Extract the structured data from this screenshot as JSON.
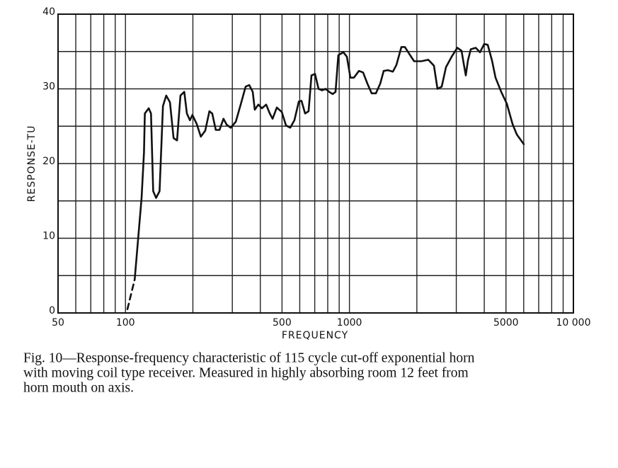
{
  "chart_data": {
    "type": "line",
    "xlabel": "FREQUENCY",
    "ylabel": "RESPONSE-TU",
    "caption": [
      "Fig. 10—Response-frequency characteristic of 115 cycle cut-off exponential horn",
      "with moving coil type receiver.  Measured in highly absorbing room 12 feet from",
      "horn mouth on axis."
    ],
    "xscale": "log",
    "xlim": [
      50,
      10000
    ],
    "ylim": [
      0,
      40
    ],
    "xticks": [
      50,
      100,
      500,
      1000,
      5000,
      {
        "value": 10000,
        "label": "10 000"
      }
    ],
    "xminor": [
      60,
      70,
      80,
      90,
      200,
      300,
      400,
      600,
      700,
      800,
      900,
      2000,
      3000,
      4000,
      6000,
      7000,
      8000,
      9000
    ],
    "yticks": [
      0,
      10,
      20,
      30,
      40
    ],
    "yminor": [
      5,
      15,
      25,
      35
    ],
    "grid": true,
    "series": [
      {
        "color": "#111111",
        "dashed": true,
        "x": [
          102,
          110
        ],
        "values": [
          0.5,
          4.5
        ]
      },
      {
        "color": "#111111",
        "dashed": false,
        "x": [
          110,
          118,
          121,
          122,
          127,
          130,
          133,
          137,
          142,
          147,
          152,
          158,
          164,
          170,
          176,
          183,
          188,
          194,
          199,
          208,
          217,
          227,
          237,
          244,
          253,
          263,
          274,
          283,
          295,
          311,
          327,
          344,
          357,
          370,
          378,
          392,
          407,
          425,
          441,
          454,
          474,
          499,
          521,
          544,
          568,
          594,
          611,
          634,
          657,
          677,
          702,
          728,
          755,
          783,
          812,
          842,
          867,
          892,
          939,
          974,
          1010,
          1047,
          1102,
          1151,
          1203,
          1257,
          1313,
          1372,
          1422,
          1485,
          1563,
          1621,
          1706,
          1769,
          1848,
          1945,
          2091,
          2249,
          2384,
          2473,
          2582,
          2698,
          2859,
          3031,
          3167,
          3236,
          3307,
          3381,
          3480,
          3662,
          3825,
          3996,
          4144,
          4329,
          4490,
          4759,
          5045,
          5347,
          5585,
          6005
        ],
        "values": [
          4.5,
          15.4,
          21.5,
          26.7,
          27.4,
          26.7,
          16.3,
          15.4,
          16.3,
          27.7,
          29.1,
          28.2,
          23.4,
          23.1,
          29.1,
          29.6,
          26.7,
          25.8,
          26.5,
          25.3,
          23.6,
          24.4,
          27.0,
          26.7,
          24.5,
          24.5,
          26.0,
          25.2,
          24.8,
          25.6,
          27.9,
          30.3,
          30.5,
          29.6,
          27.2,
          27.9,
          27.4,
          27.9,
          26.7,
          26.0,
          27.5,
          26.9,
          25.1,
          24.8,
          25.8,
          28.3,
          28.4,
          26.7,
          27.0,
          31.8,
          32.0,
          30.0,
          29.8,
          30.0,
          29.6,
          29.3,
          29.6,
          34.5,
          34.9,
          34.3,
          31.5,
          31.5,
          32.4,
          32.2,
          30.7,
          29.4,
          29.4,
          30.7,
          32.4,
          32.5,
          32.3,
          33.2,
          35.6,
          35.6,
          34.7,
          33.7,
          33.7,
          33.9,
          33.1,
          30.0,
          30.3,
          32.9,
          34.3,
          35.5,
          35.1,
          33.4,
          31.8,
          33.8,
          35.3,
          35.5,
          34.9,
          36.0,
          35.9,
          33.8,
          31.5,
          29.6,
          28.0,
          25.3,
          23.9,
          22.6
        ]
      }
    ]
  }
}
